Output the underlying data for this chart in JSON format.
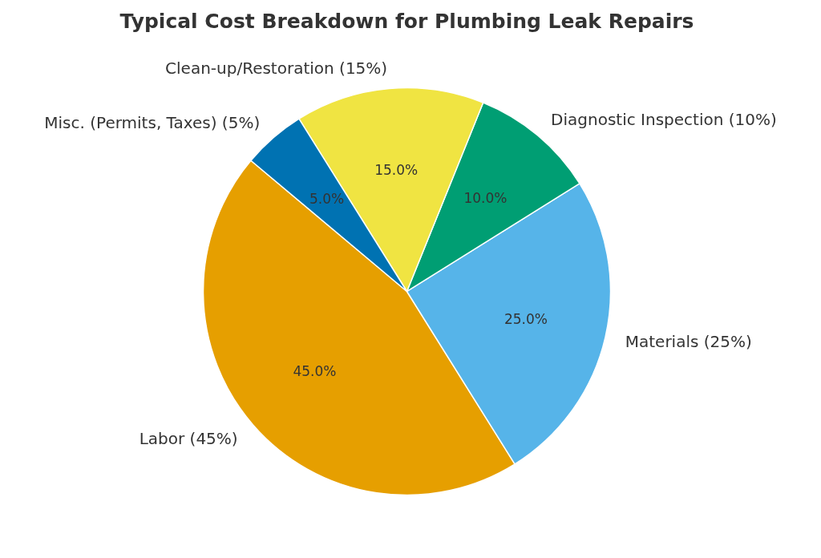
{
  "chart_data": {
    "type": "pie",
    "title": "Typical Cost Breakdown for Plumbing Leak Repairs",
    "categories": [
      "Labor (45%)",
      "Materials (25%)",
      "Diagnostic Inspection (10%)",
      "Clean-up/Restoration (15%)",
      "Misc. (Permits, Taxes) (5%)"
    ],
    "values": [
      45,
      25,
      10,
      15,
      5
    ],
    "colors": [
      "#e69f00",
      "#56b4e9",
      "#009e73",
      "#f0e442",
      "#0072b2"
    ],
    "value_labels": [
      "45.0%",
      "25.0%",
      "10.0%",
      "15.0%",
      "5.0%"
    ]
  }
}
